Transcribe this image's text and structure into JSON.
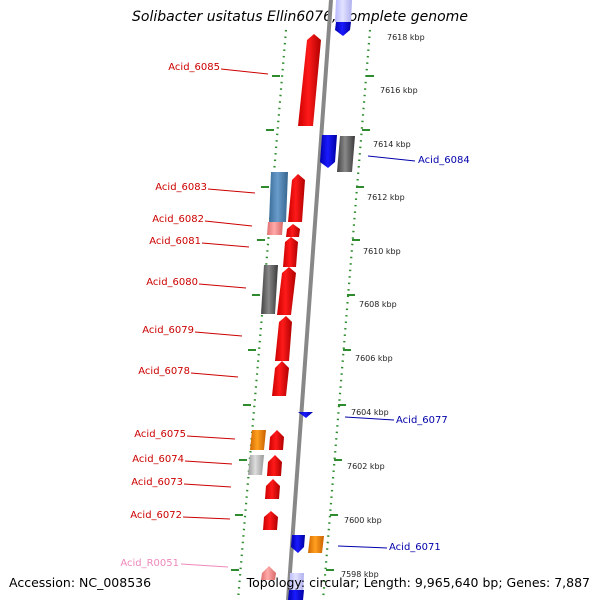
{
  "title": "Solibacter usitatus Ellin6076, complete genome",
  "footer": {
    "accession": "Accession: NC_008536",
    "summary": "Topology: circular; Length: 9,965,640 bp; Genes: 7,887"
  },
  "colors": {
    "forward_label": "#cc0000",
    "reverse_label": "#0000aa",
    "rna_label": "#ee88bb",
    "tick_dots": "#2e8b2e",
    "backbone": "#888888"
  },
  "kbp_ticks": [
    "7618 kbp",
    "7616 kbp",
    "7614 kbp",
    "7612 kbp",
    "7610 kbp",
    "7608 kbp",
    "7606 kbp",
    "7604 kbp",
    "7602 kbp",
    "7600 kbp",
    "7598 kbp"
  ],
  "gene_labels": {
    "left": [
      "Acid_6085",
      "Acid_6083",
      "Acid_6082",
      "Acid_6081",
      "Acid_6080",
      "Acid_6079",
      "Acid_6078",
      "Acid_6075",
      "Acid_6074",
      "Acid_6073",
      "Acid_6072",
      "Acid_R0051"
    ],
    "right": [
      "Acid_6084",
      "Acid_6077",
      "Acid_6071"
    ]
  }
}
